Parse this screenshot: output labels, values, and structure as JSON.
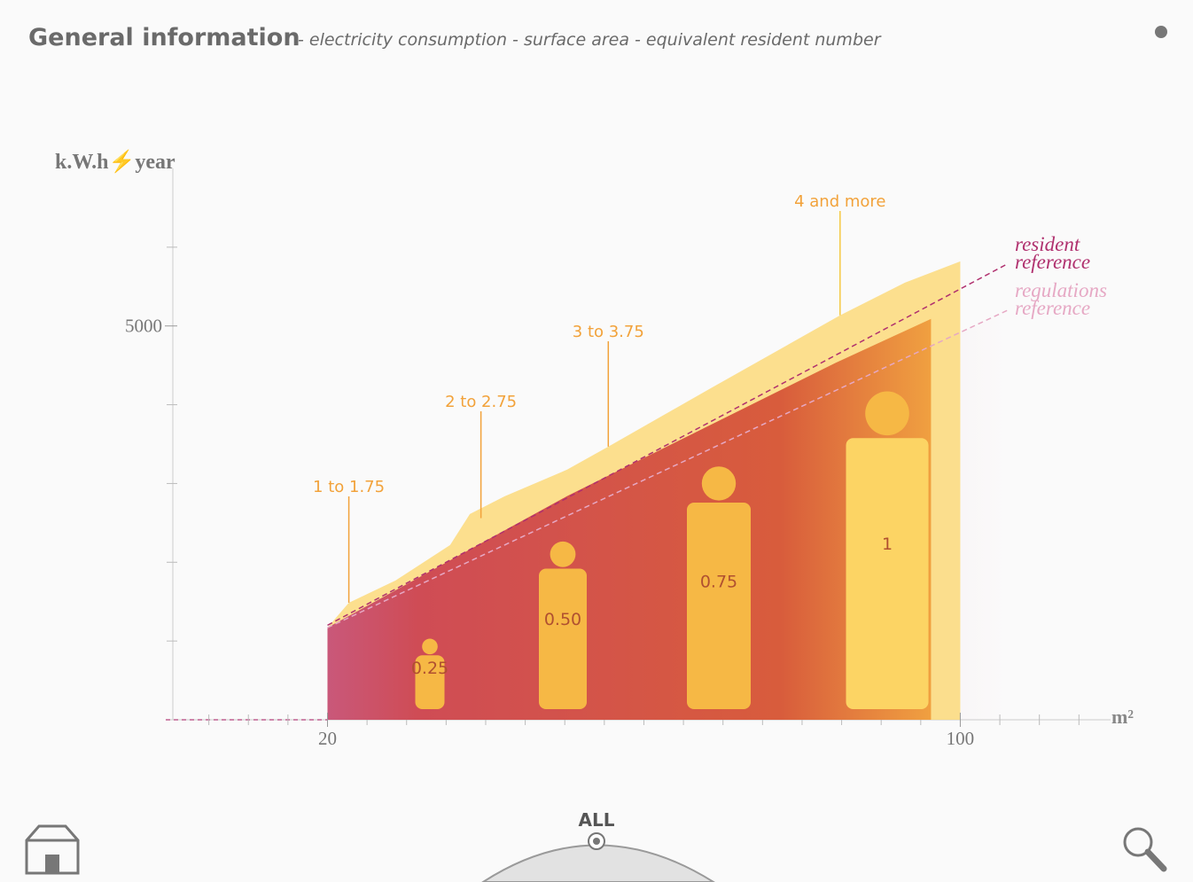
{
  "header": {
    "title": "General information",
    "subtitle": "- electricity consumption - surface area - equivalent resident number"
  },
  "chart_data": {
    "type": "area",
    "y_label": "k.W.h⚡year",
    "x_label": "m²",
    "xlim": [
      0,
      119
    ],
    "ylim": [
      0,
      7000
    ],
    "xticks": [
      20,
      100
    ],
    "yticks": [
      5000
    ],
    "y_minor_ticks": [
      1000,
      2000,
      3000,
      4000,
      6000
    ],
    "x_minor_ticks": [
      5,
      10,
      15,
      25,
      30,
      35,
      40,
      45,
      50,
      55,
      60,
      65,
      70,
      75,
      80,
      85,
      90,
      95,
      105,
      110,
      115
    ],
    "areas": [
      {
        "x": [
          20,
          22.7,
          28.6,
          35.5,
          38,
          42.4,
          50.3,
          55.5,
          68.3,
          84.8,
          93,
          100
        ],
        "values": [
          1170,
          1486,
          1768,
          2218,
          2612,
          2838,
          3176,
          3468,
          4200,
          5135,
          5550,
          5820
        ],
        "color": "#fcd97a"
      },
      {
        "x": [
          20,
          50.3,
          84.2,
          96.3
        ],
        "values": [
          1170,
          2840,
          4530,
          5090
        ],
        "color": "#cf4a48"
      }
    ],
    "series": [
      {
        "name": "resident reference",
        "color": "#b0306e",
        "x": [
          20,
          106
        ],
        "values": [
          1200,
          5790
        ]
      },
      {
        "name": "regulations reference",
        "color": "#e6a8c4",
        "x": [
          20,
          106
        ],
        "values": [
          1170,
          5200
        ]
      }
    ],
    "annotations": [
      {
        "text": "1 to 1.75",
        "x": 22.7,
        "y": 1486
      },
      {
        "text": "2 to 2.75",
        "x": 39.4,
        "y": 2560
      },
      {
        "text": "3 to 3.75",
        "x": 55.5,
        "y": 3468
      },
      {
        "text": "4 and more",
        "x": 84.8,
        "y": 5135
      }
    ],
    "residents": [
      "0.25",
      "0.50",
      "0.75",
      "1"
    ]
  },
  "controls": {
    "filter": "ALL"
  }
}
